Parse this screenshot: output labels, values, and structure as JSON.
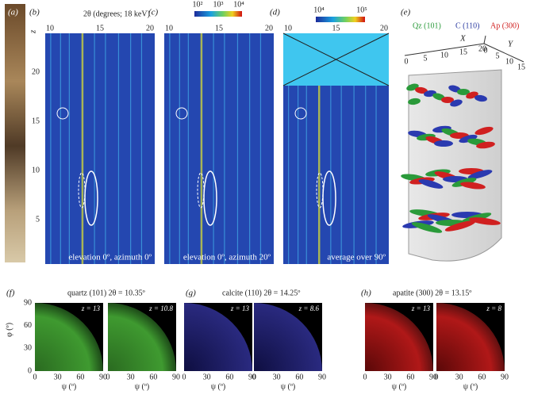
{
  "panels": {
    "a": {
      "label": "(a)"
    },
    "b": {
      "label": "(b)",
      "caption": "elevation 0º, azimuth 0º"
    },
    "c": {
      "label": "(c)",
      "caption": "elevation 0º, azimuth 20º"
    },
    "d": {
      "label": "(d)",
      "caption": "average over 90º"
    },
    "e": {
      "label": "(e)",
      "legend": [
        "Qz (101)",
        "C (110)",
        "Ap (300)"
      ],
      "x_axis": {
        "title": "X",
        "ticks": [
          "0",
          "5",
          "10",
          "15",
          "20"
        ]
      },
      "y_axis": {
        "title": "Y",
        "ticks": [
          "0",
          "5",
          "10",
          "15"
        ]
      }
    },
    "f": {
      "label": "(f)",
      "title": "quartz (101) 2θ = 10.35º",
      "maps": [
        "z = 13",
        "z = 10.8"
      ]
    },
    "g": {
      "label": "(g)",
      "title": "calcite (110) 2θ = 14.25º",
      "maps": [
        "z = 13",
        "z = 8.6"
      ]
    },
    "h": {
      "label": "(h)",
      "title": "apatite (300) 2θ = 13.15º",
      "maps": [
        "z = 13",
        "z = 8"
      ]
    }
  },
  "diffraction": {
    "x_axis_title": "2θ (degrees; 18 keV)",
    "x_ticks": [
      "10",
      "15",
      "20"
    ],
    "z_label": "z",
    "z_ticks": [
      "5",
      "10",
      "15",
      "20"
    ]
  },
  "colorbars": [
    {
      "ticks": [
        "10²",
        "10³",
        "10⁴"
      ]
    },
    {
      "ticks": [
        "10⁴",
        "10⁵"
      ]
    }
  ],
  "pole_figures": {
    "phi_label": "φ (º)",
    "psi_label": "ψ (º)",
    "ticks": [
      "0",
      "30",
      "60",
      "90"
    ]
  }
}
